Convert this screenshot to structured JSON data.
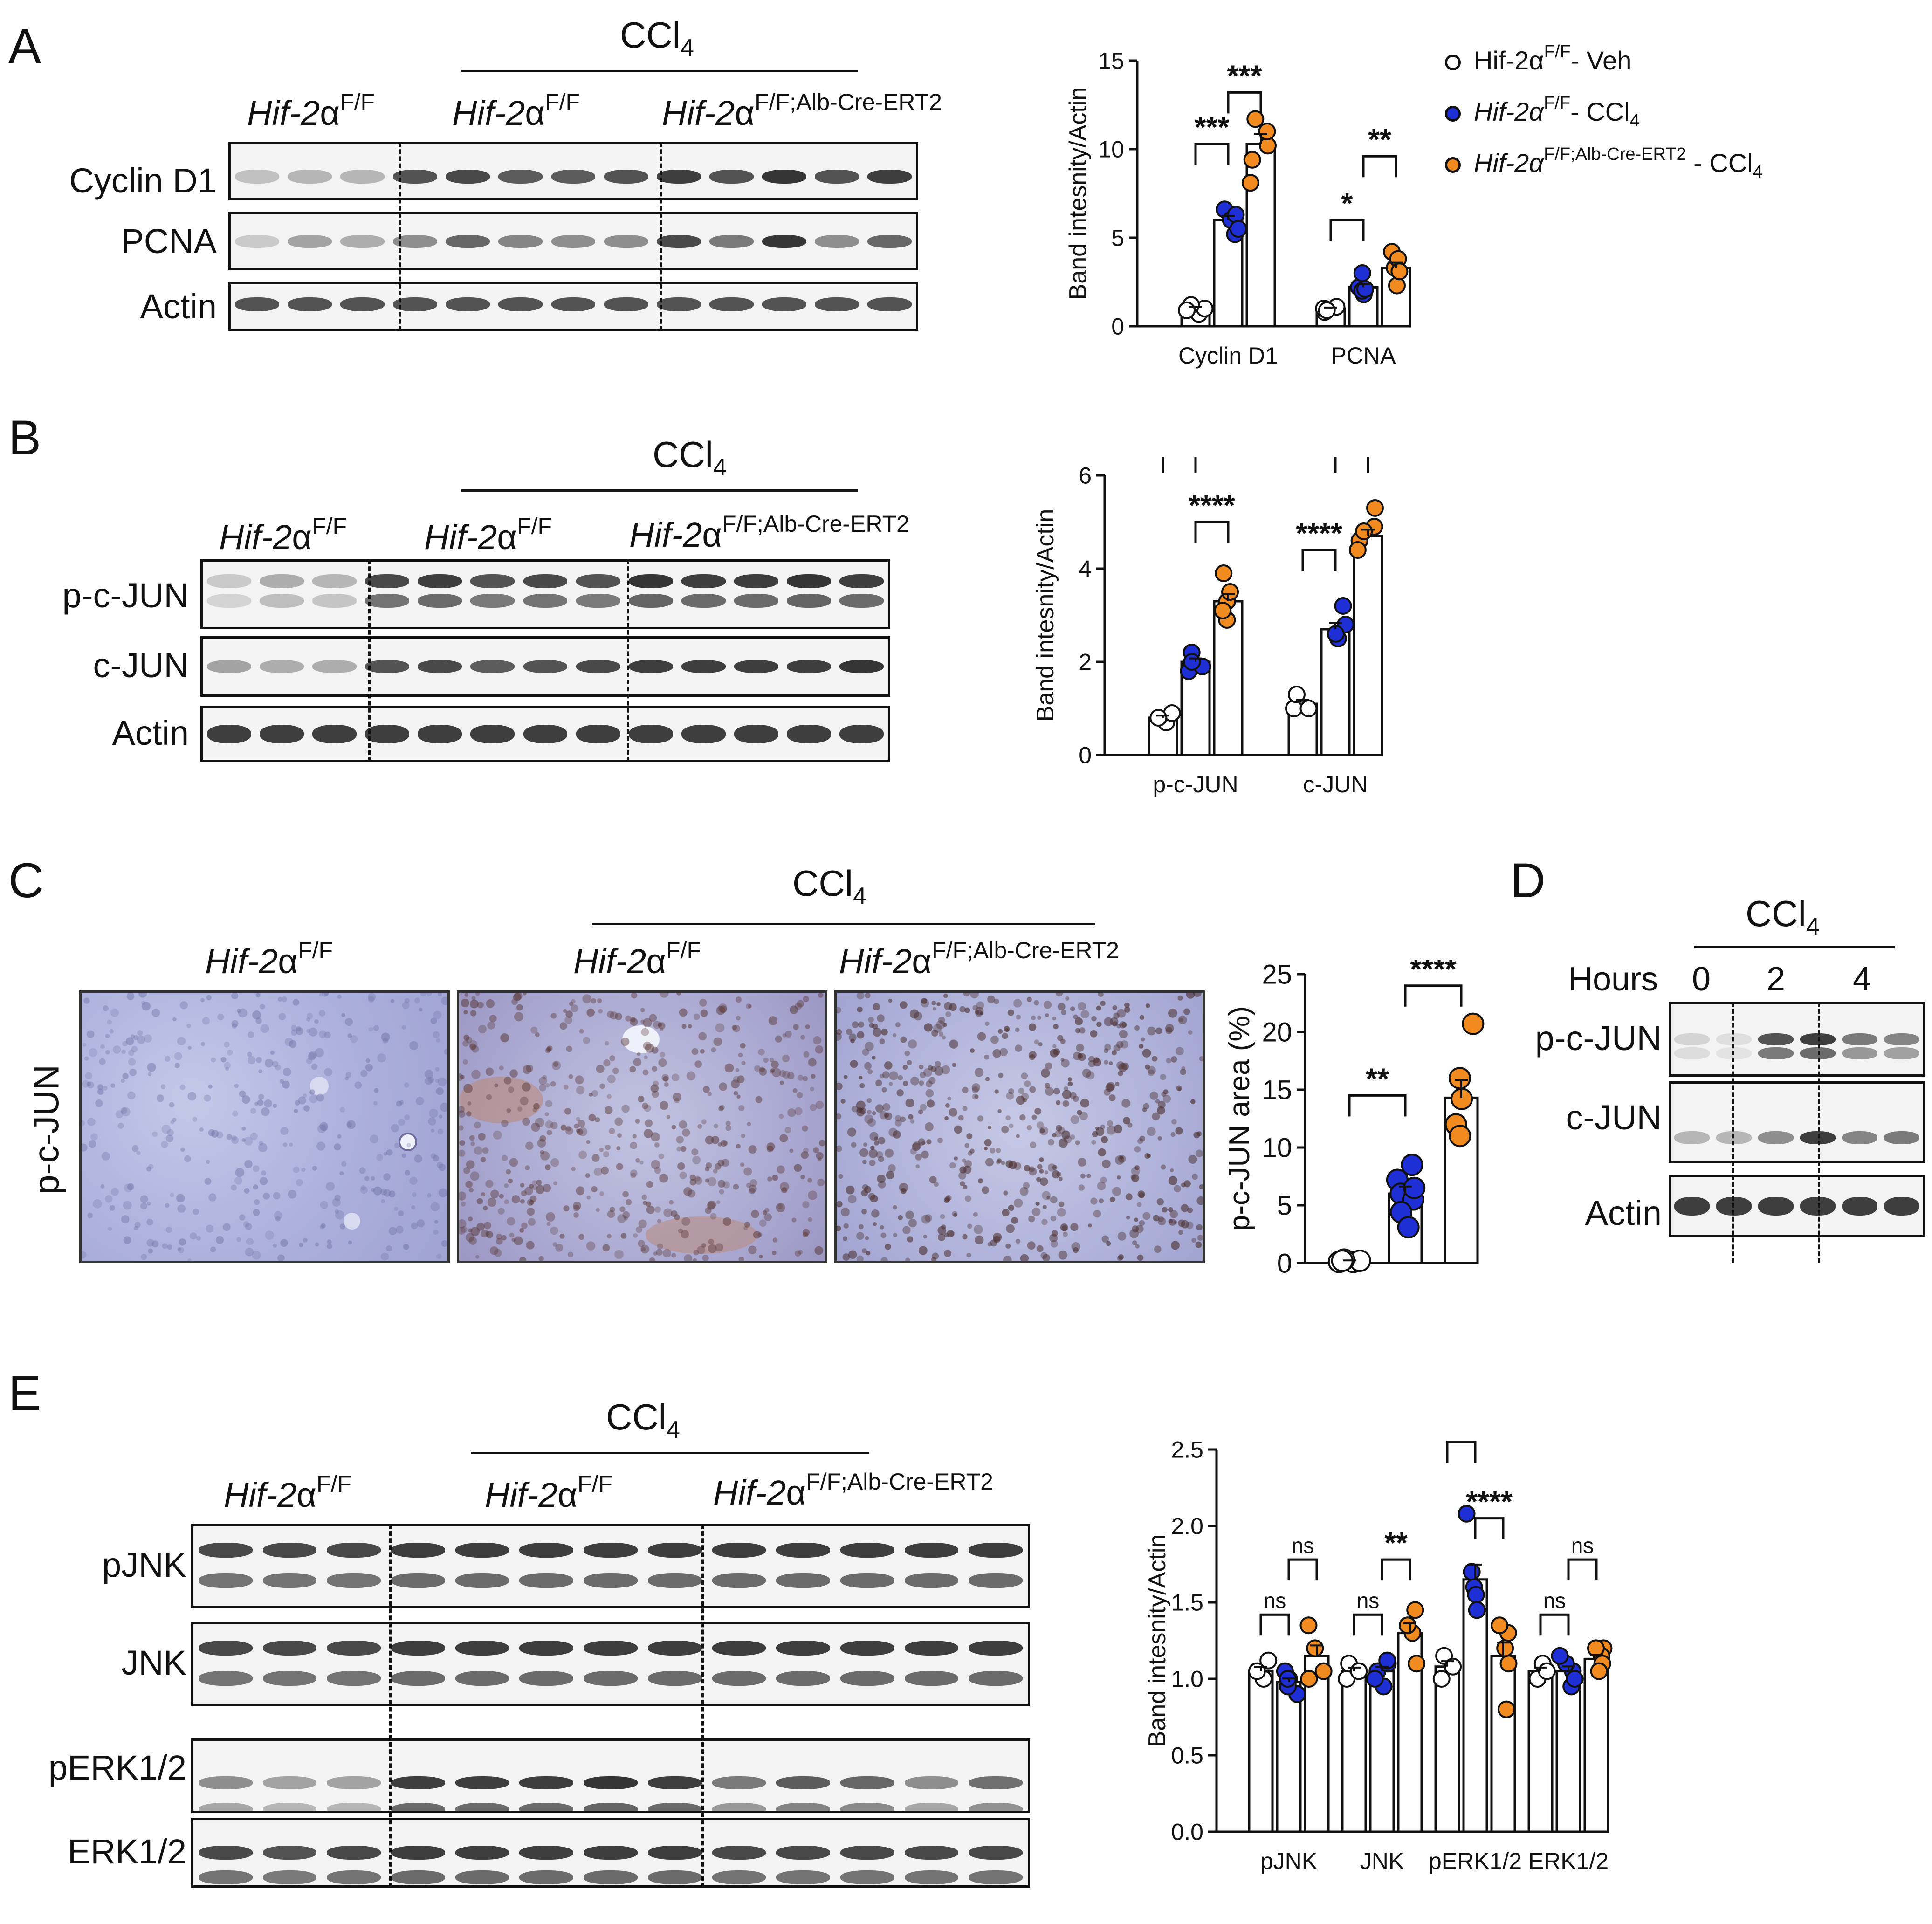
{
  "colors": {
    "veh": "#ffffff",
    "ccl4_ff": "#1f2fd6",
    "ccl4_ko": "#f18a1f",
    "ihc_bg": "#b9bde0",
    "ihc_nuclei": "#7a4a3a"
  },
  "panels": {
    "A": {
      "letter": "A",
      "treatment": "CCl",
      "treatment_sub": "4",
      "groups": [
        {
          "gene": "Hif-2",
          "alpha": "α",
          "sup": "F/F"
        },
        {
          "gene": "Hif-2",
          "alpha": "α",
          "sup": "F/F"
        },
        {
          "gene": "Hif-2",
          "alpha": "α",
          "sup": "F/F;Alb-Cre-ERT2"
        }
      ],
      "rows": [
        "Cyclin D1",
        "PCNA",
        "Actin"
      ]
    },
    "B": {
      "letter": "B",
      "treatment": "CCl",
      "treatment_sub": "4",
      "groups": [
        {
          "gene": "Hif-2",
          "alpha": "α",
          "sup": "F/F"
        },
        {
          "gene": "Hif-2",
          "alpha": "α",
          "sup": "F/F"
        },
        {
          "gene": "Hif-2",
          "alpha": "α",
          "sup": "F/F;Alb-Cre-ERT2"
        }
      ],
      "rows": [
        "p-c-JUN",
        "c-JUN",
        "Actin"
      ]
    },
    "C": {
      "letter": "C",
      "treatment": "CCl",
      "treatment_sub": "4",
      "side_label": "p-c-JUN",
      "groups": [
        {
          "gene": "Hif-2",
          "alpha": "α",
          "sup": "F/F"
        },
        {
          "gene": "Hif-2",
          "alpha": "α",
          "sup": "F/F"
        },
        {
          "gene": "Hif-2",
          "alpha": "α",
          "sup": "F/F;Alb-Cre-ERT2"
        }
      ]
    },
    "D": {
      "letter": "D",
      "treatment": "CCl",
      "treatment_sub": "4",
      "hours_label": "Hours",
      "hours": [
        "0",
        "2",
        "4"
      ],
      "rows": [
        "p-c-JUN",
        "c-JUN",
        "Actin"
      ]
    },
    "E": {
      "letter": "E",
      "treatment": "CCl",
      "treatment_sub": "4",
      "groups": [
        {
          "gene": "Hif-2",
          "alpha": "α",
          "sup": "F/F"
        },
        {
          "gene": "Hif-2",
          "alpha": "α",
          "sup": "F/F"
        },
        {
          "gene": "Hif-2",
          "alpha": "α",
          "sup": "F/F;Alb-Cre-ERT2"
        }
      ],
      "rows": [
        "pJNK",
        "JNK",
        "pERK1/2",
        "ERK1/2"
      ]
    }
  },
  "legend": [
    {
      "gene": "Hif-2",
      "alpha": "α",
      "sup": "F/F",
      "suffix": "- Veh",
      "italic": false
    },
    {
      "gene": "Hif-2",
      "alpha": "α",
      "sup": "F/F",
      "suffix": "- CCl",
      "sub": "4",
      "italic": true
    },
    {
      "gene": "Hif-2",
      "alpha": "α",
      "sup": "F/F;Alb-Cre-ERT2",
      "suffix": " - CCl",
      "sub": "4",
      "italic": true
    }
  ],
  "chart_data": [
    {
      "id": "A",
      "type": "bar",
      "ylabel": "Band intesnity/Actin",
      "ylim": [
        0,
        15
      ],
      "yticks": [
        "0",
        "5",
        "10",
        "15"
      ],
      "categories": [
        "Cyclin D1",
        "PCNA"
      ],
      "series": [
        {
          "name": "Hif-2αF/F- Veh",
          "values": [
            1.0,
            1.0
          ],
          "points": [
            [
              0.7,
              1.0,
              1.2,
              0.9
            ],
            [
              0.8,
              1.1,
              1.0,
              0.9
            ]
          ]
        },
        {
          "name": "Hif-2αF/F- CCl4",
          "values": [
            6.0,
            2.2
          ],
          "points": [
            [
              5.2,
              6.6,
              6.0,
              6.3,
              5.5
            ],
            [
              1.8,
              2.2,
              3.0,
              2.0,
              2.1
            ]
          ]
        },
        {
          "name": "Hif-2αF/F;Alb-Cre-ERT2 - CCl4",
          "values": [
            10.3,
            3.3
          ],
          "points": [
            [
              11.7,
              10.2,
              9.4,
              11.0,
              8.1
            ],
            [
              4.2,
              3.3,
              2.3,
              3.8,
              3.1
            ]
          ]
        }
      ],
      "significance": [
        {
          "label": "***",
          "from": [
            0,
            0
          ],
          "to": [
            0,
            1
          ],
          "y": 10.3
        },
        {
          "label": "***",
          "from": [
            0,
            1
          ],
          "to": [
            0,
            2
          ],
          "y": 13.2
        },
        {
          "label": "*",
          "from": [
            1,
            0
          ],
          "to": [
            1,
            1
          ],
          "y": 6.0
        },
        {
          "label": "**",
          "from": [
            1,
            1
          ],
          "to": [
            1,
            2
          ],
          "y": 9.6
        }
      ]
    },
    {
      "id": "B",
      "type": "bar",
      "ylabel": "Band intesnity/Actin",
      "ylim": [
        0,
        6
      ],
      "yticks": [
        "0",
        "2",
        "4",
        "6"
      ],
      "categories": [
        "p-c-JUN",
        "c-JUN"
      ],
      "series": [
        {
          "name": "Hif-2αF/F- Veh",
          "values": [
            0.8,
            1.1
          ],
          "points": [
            [
              0.7,
              0.9,
              0.8
            ],
            [
              1.0,
              1.3,
              1.0
            ]
          ]
        },
        {
          "name": "Hif-2αF/F- CCl4",
          "values": [
            2.0,
            2.7
          ],
          "points": [
            [
              1.8,
              2.2,
              1.9,
              2.0
            ],
            [
              2.5,
              3.2,
              2.8,
              2.6
            ]
          ]
        },
        {
          "name": "Hif-2αF/F;Alb-Cre-ERT2 - CCl4",
          "values": [
            3.3,
            4.7
          ],
          "points": [
            [
              3.9,
              3.3,
              2.9,
              3.5,
              3.1
            ],
            [
              5.3,
              4.6,
              4.9,
              4.4,
              4.8
            ]
          ]
        }
      ],
      "significance": [
        {
          "label": "**",
          "from": [
            0,
            0
          ],
          "to": [
            0,
            1
          ],
          "y": 6.5
        },
        {
          "label": "****",
          "from": [
            0,
            1
          ],
          "to": [
            0,
            2
          ],
          "y": 5.0
        },
        {
          "label": "****",
          "from": [
            1,
            0
          ],
          "to": [
            1,
            1
          ],
          "y": 4.4
        },
        {
          "label": "****",
          "from": [
            1,
            1
          ],
          "to": [
            1,
            2
          ],
          "y": 6.5
        }
      ]
    },
    {
      "id": "C",
      "type": "bar",
      "ylabel": "p-c-JUN area (%)",
      "ylim": [
        0,
        25
      ],
      "yticks": [
        "0",
        "5",
        "10",
        "15",
        "20",
        "25"
      ],
      "categories": [
        "",
        "",
        ""
      ],
      "series": [
        {
          "name": "Hif-2αF/F- Veh",
          "values": [
            0.2,
            0,
            0
          ],
          "points": [
            [
              0.1,
              0.2,
              0.3,
              0.1,
              0.2
            ]
          ]
        },
        {
          "name": "Hif-2αF/F- CCl4",
          "values": [
            0,
            6.0,
            0
          ],
          "points": [
            [
              8.5,
              7.2,
              6.0,
              5.5,
              4.4,
              3.1,
              6.5
            ]
          ]
        },
        {
          "name": "Hif-2αF/F;Alb-Cre-ERT2 - CCl4",
          "values": [
            0,
            0,
            14.3
          ],
          "points": [
            [
              20.7,
              14.2,
              12.0,
              11.0,
              16.0
            ]
          ]
        }
      ],
      "significance": [
        {
          "label": "**",
          "from": 0,
          "to": 1,
          "y": 14.5
        },
        {
          "label": "****",
          "from": 1,
          "to": 2,
          "y": 24.0
        }
      ]
    },
    {
      "id": "E",
      "type": "bar",
      "ylabel": "Band intesnity/Actin",
      "ylim": [
        0,
        2.5
      ],
      "yticks": [
        "0.0",
        "0.5",
        "1.0",
        "1.5",
        "2.0",
        "2.5"
      ],
      "categories": [
        "pJNK",
        "JNK",
        "pERK1/2",
        "ERK1/2"
      ],
      "series": [
        {
          "name": "Hif-2αF/F- Veh",
          "values": [
            1.05,
            1.05,
            1.08,
            1.05
          ],
          "points": [
            [
              1.0,
              1.12,
              1.05
            ],
            [
              1.0,
              1.1,
              1.05
            ],
            [
              1.0,
              1.15,
              1.08
            ],
            [
              1.0,
              1.1,
              1.05
            ]
          ]
        },
        {
          "name": "Hif-2αF/F- CCl4",
          "values": [
            0.98,
            1.05,
            1.65,
            1.05
          ],
          "points": [
            [
              0.9,
              1.0,
              1.05,
              0.95,
              1.0
            ],
            [
              0.95,
              1.05,
              1.1,
              1.0,
              1.12
            ],
            [
              2.08,
              1.7,
              1.6,
              1.55,
              1.45
            ],
            [
              0.95,
              1.05,
              1.1,
              1.0,
              1.15
            ]
          ]
        },
        {
          "name": "Hif-2αF/F;Alb-Cre-ERT2 - CCl4",
          "values": [
            1.15,
            1.3,
            1.15,
            1.13
          ],
          "points": [
            [
              1.35,
              1.2,
              1.05,
              1.0
            ],
            [
              1.45,
              1.3,
              1.1,
              1.35
            ],
            [
              1.3,
              1.1,
              1.2,
              0.8,
              1.35
            ],
            [
              1.2,
              1.15,
              1.1,
              1.05,
              1.2
            ]
          ]
        }
      ],
      "significance": [
        {
          "label": "ns",
          "from": [
            0,
            0
          ],
          "to": [
            0,
            1
          ],
          "y": 1.42
        },
        {
          "label": "ns",
          "from": [
            0,
            1
          ],
          "to": [
            0,
            2
          ],
          "y": 1.78
        },
        {
          "label": "ns",
          "from": [
            1,
            0
          ],
          "to": [
            1,
            1
          ],
          "y": 1.42
        },
        {
          "label": "**",
          "from": [
            1,
            1
          ],
          "to": [
            1,
            2
          ],
          "y": 1.78
        },
        {
          "label": "****",
          "from": [
            2,
            0
          ],
          "to": [
            2,
            1
          ],
          "y": 2.55
        },
        {
          "label": "****",
          "from": [
            2,
            1
          ],
          "to": [
            2,
            2
          ],
          "y": 2.05
        },
        {
          "label": "ns",
          "from": [
            3,
            0
          ],
          "to": [
            3,
            1
          ],
          "y": 1.42
        },
        {
          "label": "ns",
          "from": [
            3,
            1
          ],
          "to": [
            3,
            2
          ],
          "y": 1.78
        }
      ]
    }
  ]
}
